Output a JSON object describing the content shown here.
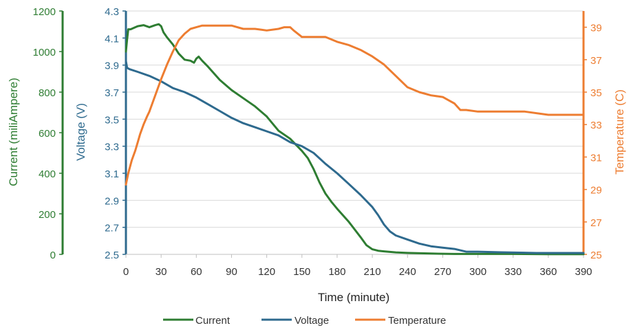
{
  "chart_data": {
    "type": "line",
    "xlabel": "Time (minute)",
    "x_ticks": [
      "0",
      "30",
      "60",
      "90",
      "120",
      "150",
      "180",
      "210",
      "240",
      "270",
      "300",
      "330",
      "360",
      "390"
    ],
    "xlim": [
      0,
      390
    ],
    "axes": {
      "current": {
        "label": "Current (miliAmpere)",
        "ylim": [
          0,
          1200
        ],
        "ticks": [
          "0",
          "200",
          "400",
          "600",
          "800",
          "1000",
          "1200"
        ],
        "color": "#2e7d32"
      },
      "voltage": {
        "label": "Voltage (V)",
        "ylim": [
          2.5,
          4.3
        ],
        "ticks": [
          "2.5",
          "2.7",
          "2.9",
          "3.1",
          "3.3",
          "3.5",
          "3.7",
          "3.9",
          "4.1",
          "4.3"
        ],
        "color": "#2e6a8e"
      },
      "temperature": {
        "label": "Temperature (C)",
        "ylim": [
          25,
          40
        ],
        "ticks": [
          "25",
          "27",
          "29",
          "31",
          "33",
          "35",
          "37",
          "39"
        ],
        "color": "#ed7d31"
      }
    },
    "series": [
      {
        "name": "Current",
        "axis": "current",
        "color": "#2e7d32",
        "x": [
          0,
          1,
          2,
          4,
          6,
          8,
          10,
          15,
          20,
          25,
          28,
          30,
          32,
          35,
          40,
          45,
          50,
          55,
          58,
          60,
          62,
          65,
          70,
          80,
          90,
          100,
          110,
          120,
          130,
          140,
          150,
          155,
          160,
          165,
          170,
          175,
          180,
          190,
          200,
          205,
          210,
          215,
          220,
          230,
          240,
          260,
          280,
          300,
          330,
          360,
          390
        ],
        "y": [
          1000,
          1060,
          1110,
          1110,
          1115,
          1120,
          1125,
          1130,
          1120,
          1130,
          1135,
          1125,
          1095,
          1070,
          1035,
          990,
          960,
          955,
          945,
          965,
          975,
          955,
          925,
          860,
          810,
          770,
          730,
          680,
          610,
          570,
          510,
          475,
          420,
          355,
          300,
          260,
          225,
          160,
          85,
          45,
          25,
          18,
          15,
          10,
          7,
          4,
          2,
          2,
          2,
          1,
          1
        ]
      },
      {
        "name": "Voltage",
        "axis": "voltage",
        "color": "#2e6a8e",
        "x": [
          0,
          1,
          3,
          10,
          20,
          30,
          40,
          50,
          60,
          70,
          80,
          90,
          100,
          110,
          120,
          130,
          140,
          150,
          160,
          170,
          180,
          190,
          200,
          210,
          215,
          220,
          225,
          230,
          240,
          250,
          260,
          270,
          280,
          290,
          300,
          320,
          350,
          390
        ],
        "y": [
          3.93,
          3.88,
          3.87,
          3.85,
          3.82,
          3.78,
          3.73,
          3.7,
          3.66,
          3.61,
          3.56,
          3.51,
          3.47,
          3.44,
          3.41,
          3.38,
          3.33,
          3.3,
          3.25,
          3.17,
          3.1,
          3.02,
          2.94,
          2.85,
          2.79,
          2.72,
          2.67,
          2.64,
          2.61,
          2.58,
          2.56,
          2.55,
          2.54,
          2.52,
          2.52,
          2.515,
          2.51,
          2.51
        ]
      },
      {
        "name": "Temperature",
        "axis": "temperature",
        "color": "#ed7d31",
        "x": [
          0,
          2,
          5,
          8,
          10,
          12,
          15,
          18,
          20,
          25,
          30,
          35,
          40,
          45,
          50,
          55,
          60,
          65,
          70,
          90,
          100,
          110,
          120,
          130,
          135,
          140,
          143,
          150,
          160,
          170,
          180,
          190,
          200,
          210,
          220,
          230,
          240,
          250,
          260,
          270,
          275,
          280,
          285,
          290,
          300,
          320,
          340,
          360,
          380,
          390
        ],
        "y": [
          29.3,
          30.0,
          30.8,
          31.4,
          31.9,
          32.4,
          33.0,
          33.5,
          33.8,
          34.8,
          35.8,
          36.7,
          37.5,
          38.2,
          38.6,
          38.9,
          39.0,
          39.1,
          39.1,
          39.1,
          38.9,
          38.9,
          38.8,
          38.9,
          39.0,
          39.0,
          38.8,
          38.4,
          38.4,
          38.4,
          38.1,
          37.9,
          37.6,
          37.2,
          36.7,
          36.0,
          35.3,
          35.0,
          34.8,
          34.7,
          34.5,
          34.3,
          33.9,
          33.9,
          33.8,
          33.8,
          33.8,
          33.6,
          33.6,
          33.6
        ]
      }
    ],
    "legend": {
      "position": "bottom"
    },
    "grid": {
      "horizontal": true,
      "vertical": false
    }
  }
}
